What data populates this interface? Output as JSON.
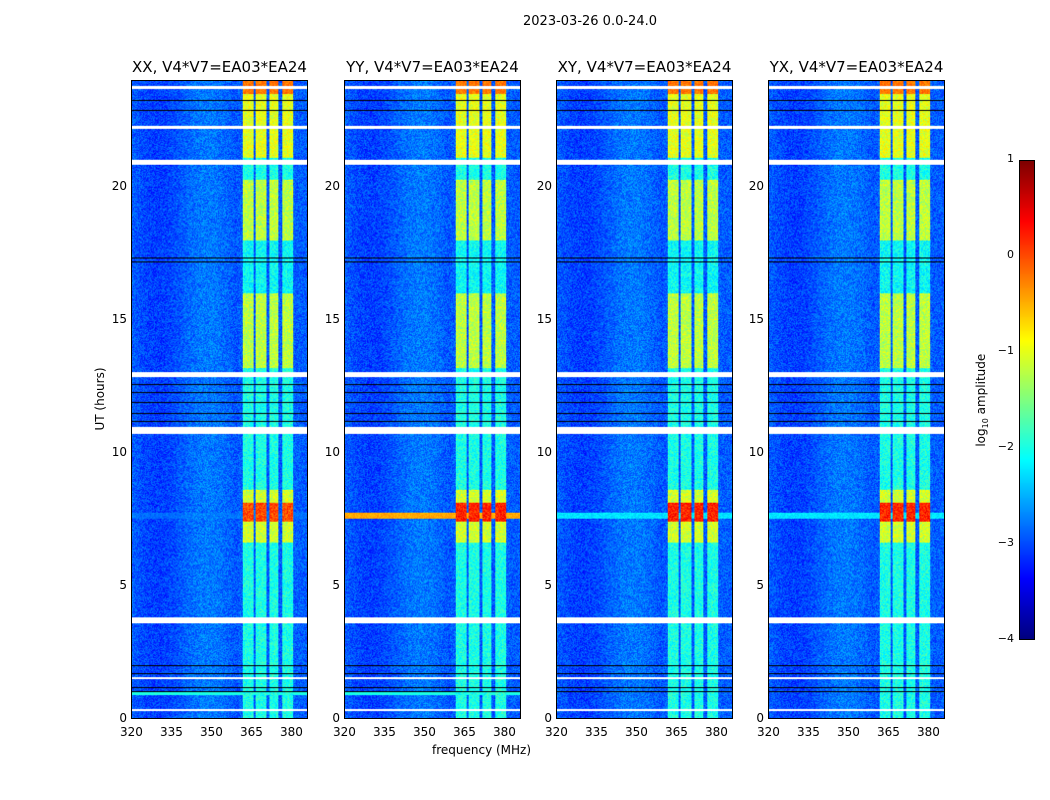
{
  "chart_data": {
    "type": "heatmap",
    "title": "2023-03-26 0.0-24.0",
    "xlabel": "frequency (MHz)",
    "ylabel": "UT (hours)",
    "xlim": [
      320,
      386.4
    ],
    "ylim": [
      0,
      24
    ],
    "xticks": [
      320,
      335,
      350,
      365,
      380
    ],
    "yticks": [
      0,
      5,
      10,
      15,
      20
    ],
    "panels": [
      {
        "title": "XX, V4*V7=EA03*EA24",
        "event_line_level": -3.0
      },
      {
        "title": "YY, V4*V7=EA03*EA24",
        "event_line_level": -0.6
      },
      {
        "title": "XY, V4*V7=EA03*EA24",
        "event_line_level": -2.4
      },
      {
        "title": "YX, V4*V7=EA03*EA24",
        "event_line_level": -2.4
      }
    ],
    "rfi_channels_mhz": [
      [
        362,
        366
      ],
      [
        367,
        371
      ],
      [
        372,
        375.5
      ],
      [
        377,
        381
      ]
    ],
    "flagged_hours": [
      [
        0.25,
        0.32
      ],
      [
        1.45,
        1.55
      ],
      [
        3.55,
        3.8
      ],
      [
        10.7,
        10.95
      ],
      [
        12.85,
        13.05
      ],
      [
        20.85,
        21.05
      ],
      [
        22.2,
        22.3
      ],
      [
        23.7,
        23.8
      ]
    ],
    "scan_boundaries_hours": [
      1.0,
      1.15,
      1.7,
      2.0,
      11.2,
      11.5,
      11.9,
      12.3,
      12.6,
      17.2,
      17.35,
      22.9,
      23.3
    ],
    "colorbar": {
      "label": "log10 amplitude",
      "label_main": "log",
      "label_sub": "10",
      "label_rest": " amplitude",
      "range": [
        -4,
        1
      ],
      "ticks": [
        1,
        0,
        -1,
        -2,
        -3,
        -4
      ],
      "tick_labels": [
        "1",
        "0",
        "−1",
        "−2",
        "−3",
        "−4"
      ],
      "colormap": "jet"
    }
  }
}
